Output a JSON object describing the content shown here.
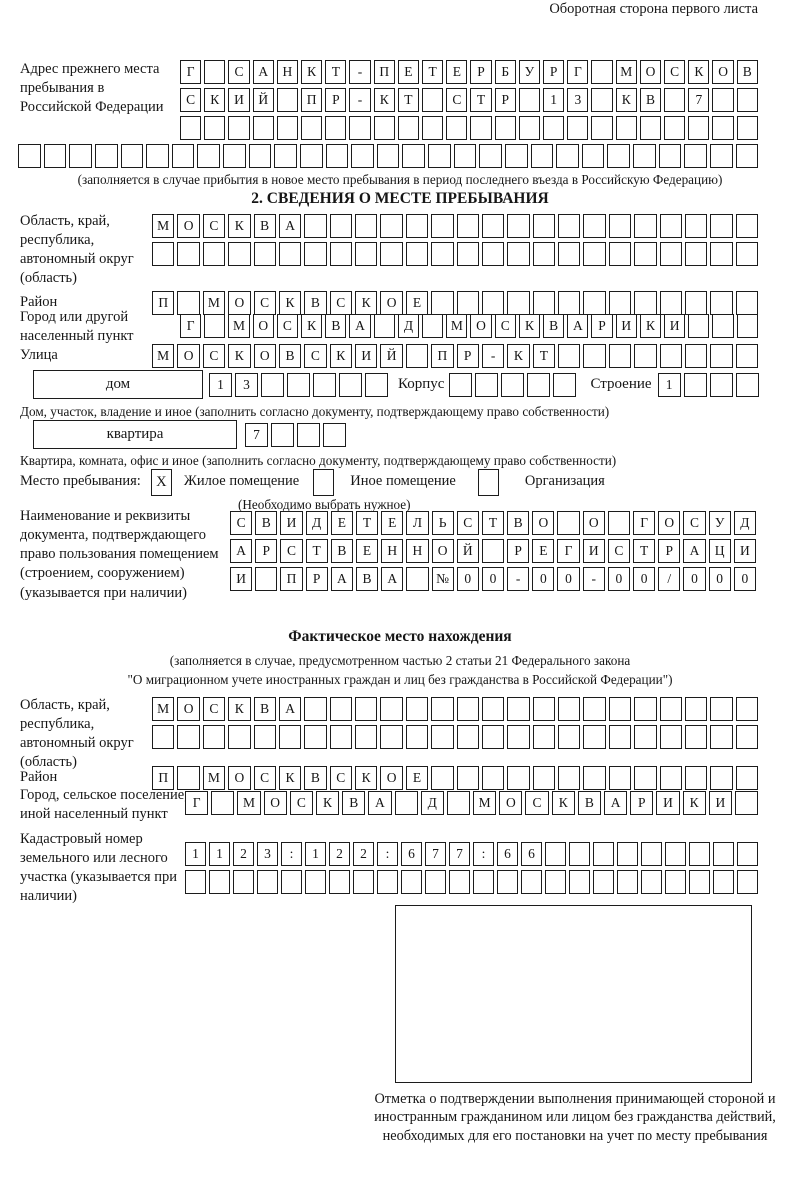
{
  "colors": {
    "ink": "#1c1c1c",
    "paper": "#ffffff"
  },
  "corner_note": "Оборотная сторона первого листа",
  "prev_address": {
    "label": "Адрес прежнего места пребывания в Российской Федерации",
    "row1": {
      "cells": 24,
      "text": "Г САНКТ-ПЕТЕРБУРГ МОСКОВ"
    },
    "row2": {
      "cells": 24,
      "text": "СКИЙ ПР-КТ СТР 13 КВ 7"
    },
    "row3": {
      "cells": 24,
      "text": ""
    },
    "row4": {
      "cells": 29,
      "text": ""
    },
    "note": "(заполняется в случае прибытия в новое место пребывания в период последнего въезда в Российскую Федерацию)"
  },
  "section2": {
    "title": "2. СВЕДЕНИЯ О МЕСТЕ ПРЕБЫВАНИЯ",
    "oblast": {
      "label": "Область, край, республика, автономный округ (область)",
      "row1": {
        "cells": 24,
        "text": "МОСКВА"
      },
      "row2": {
        "cells": 24,
        "text": ""
      }
    },
    "raion": {
      "label": "Район",
      "row": {
        "cells": 24,
        "text": "П МОСКВСКОЕ"
      }
    },
    "gorod": {
      "label": "Город или другой населенный пункт",
      "row": {
        "cells": 24,
        "text": "Г МОСКВА Д МОСКВАРИКИ"
      }
    },
    "ulitsa": {
      "label": "Улица",
      "row": {
        "cells": 24,
        "text": "МОСКОВСКИЙ ПР-КТ"
      }
    },
    "dom": {
      "box_label": "дом",
      "row": {
        "cells": 7,
        "text": "13"
      },
      "korpus_label": "Корпус",
      "korpus_row": {
        "cells": 5,
        "text": ""
      },
      "stroenie_label": "Строение",
      "stroenie_row": {
        "cells": 4,
        "text": "1"
      }
    },
    "dom_note": "Дом, участок, владение и иное (заполнить согласно документу, подтверждающему право собственности)",
    "kvartira": {
      "box_label": "квартира",
      "row": {
        "cells": 4,
        "text": "7"
      }
    },
    "kvartira_note": "Квартира, комната, офис и иное (заполнить согласно документу, подтверждающему право собственности)",
    "mesto": {
      "label": "Место пребывания:",
      "opt1_mark": "X",
      "opt1": "Жилое помещение",
      "opt2_mark": "",
      "opt2": "Иное помещение",
      "opt3_mark": "",
      "opt3": "Организация",
      "note": "(Необходимо выбрать нужное)"
    },
    "doc": {
      "label": "Наименование и реквизиты документа, подтверждающего право пользования помещением (строением, сооружением) (указывается при наличии)",
      "row1": {
        "cells": 21,
        "text": "СВИДЕТЕЛЬСТВО О ГОСУД"
      },
      "row2": {
        "cells": 21,
        "text": "АРСТВЕННОЙ РЕГИСТРАЦИ"
      },
      "row3": {
        "cells": 21,
        "text": "И ПРАВА №00-00-00/000"
      }
    }
  },
  "fact": {
    "title": "Фактическое место нахождения",
    "note1": "(заполняется в случае, предусмотренном частью 2 статьи 21 Федерального закона",
    "note2": "\"О миграционном учете иностранных граждан и лиц без гражданства в Российской Федерации\")",
    "oblast": {
      "label": "Область, край, республика, автономный округ (область)",
      "row1": {
        "cells": 24,
        "text": "МОСКВА"
      },
      "row2": {
        "cells": 24,
        "text": ""
      }
    },
    "raion": {
      "label": "Район",
      "row": {
        "cells": 24,
        "text": "П МОСКВСКОЕ"
      }
    },
    "gorod": {
      "label": "Город, сельское поселение, иной населенный пункт",
      "row": {
        "cells": 22,
        "text": "Г МОСКВА Д МОСКВАРИКИ"
      }
    },
    "kadastr": {
      "label": "Кадастровый номер земельного или лесного участка (указывается при наличии)",
      "row1": {
        "cells": 24,
        "text": "1123:122:677:66"
      },
      "row2": {
        "cells": 24,
        "text": ""
      }
    },
    "stamp_caption": "Отметка о подтверждении выполнения принимающей стороной и иностранным гражданином или лицом без гражданства действий, необходимых для его постановки на учет по месту пребывания"
  }
}
